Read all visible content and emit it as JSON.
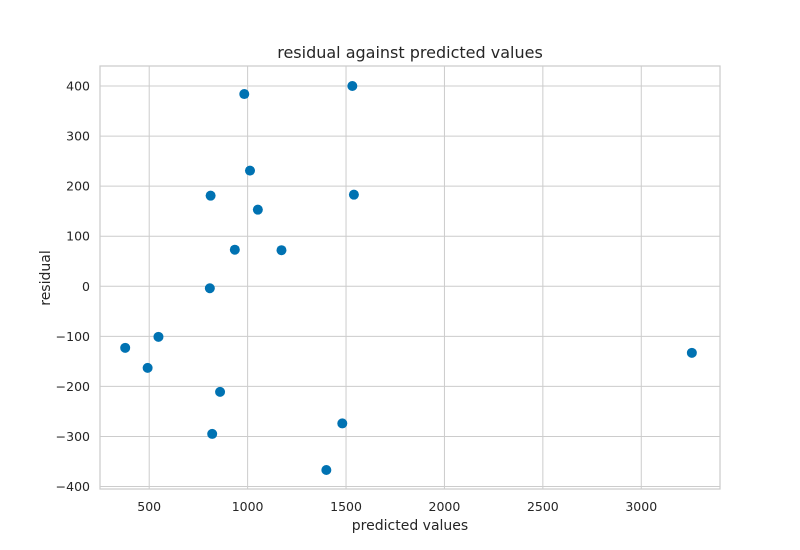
{
  "chart_data": {
    "type": "scatter",
    "title": "residual against predicted values",
    "xlabel": "predicted values",
    "ylabel": "residual",
    "xlim": [
      250,
      3400
    ],
    "ylim": [
      -405,
      440
    ],
    "xticks": [
      500,
      1000,
      1500,
      2000,
      2500,
      3000
    ],
    "yticks": [
      -400,
      -300,
      -200,
      -100,
      0,
      100,
      200,
      300,
      400
    ],
    "grid": true,
    "color": "#0072B2",
    "points": [
      {
        "x": 378,
        "y": -123
      },
      {
        "x": 492,
        "y": -163
      },
      {
        "x": 547,
        "y": -101
      },
      {
        "x": 808,
        "y": -4
      },
      {
        "x": 812,
        "y": 181
      },
      {
        "x": 820,
        "y": -295
      },
      {
        "x": 860,
        "y": -211
      },
      {
        "x": 935,
        "y": 73
      },
      {
        "x": 983,
        "y": 384
      },
      {
        "x": 1012,
        "y": 231
      },
      {
        "x": 1052,
        "y": 153
      },
      {
        "x": 1172,
        "y": 72
      },
      {
        "x": 1400,
        "y": -367
      },
      {
        "x": 1481,
        "y": -274
      },
      {
        "x": 1532,
        "y": 400
      },
      {
        "x": 1540,
        "y": 183
      },
      {
        "x": 3257,
        "y": -133
      }
    ]
  }
}
